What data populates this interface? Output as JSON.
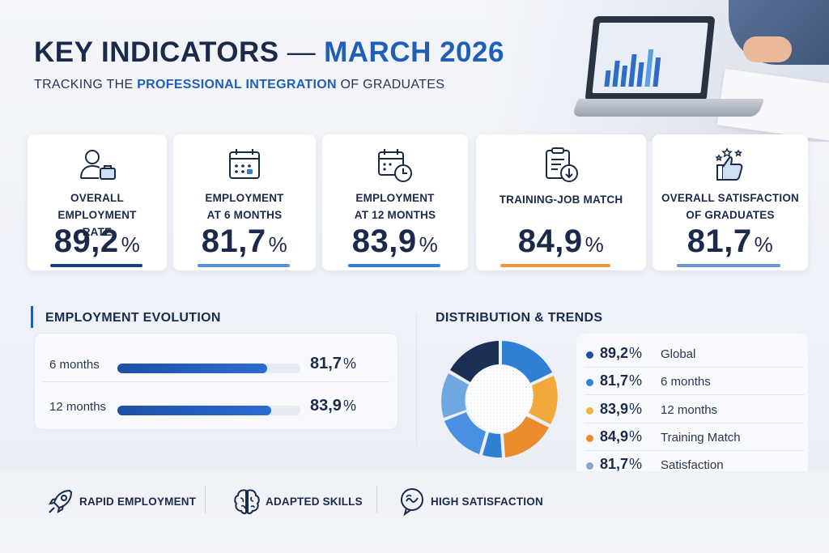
{
  "header": {
    "title_part1": "KEY INDICATORS",
    "separator": "—",
    "title_part2": "MARCH 2026",
    "subtitle_pre": "TRACKING THE ",
    "subtitle_highlight": "PROFESSIONAL INTEGRATION",
    "subtitle_post": " OF GRADUATES"
  },
  "kpis": [
    {
      "label_line1": "OVERALL EMPLOYMENT",
      "label_line2": "RATE",
      "value": "89,2",
      "unit": "%",
      "icon": "user-briefcase-icon",
      "color": "#1b3f7a"
    },
    {
      "label_line1": "EMPLOYMENT",
      "label_line2": "AT 6 MONTHS",
      "value": "81,7",
      "unit": "%",
      "icon": "calendar-icon",
      "color": "#5b8fd6"
    },
    {
      "label_line1": "EMPLOYMENT",
      "label_line2": "AT 12 MONTHS",
      "value": "83,9",
      "unit": "%",
      "icon": "calendar-clock-icon",
      "color": "#2f7fd4"
    },
    {
      "label_line1": "TRAINING-JOB MATCH",
      "label_line2": "",
      "value": "84,9",
      "unit": "%",
      "icon": "clipboard-download-icon",
      "color": "#e9983a"
    },
    {
      "label_line1": "OVERALL SATISFACTION",
      "label_line2": "OF GRADUATES",
      "value": "81,7",
      "unit": "%",
      "icon": "thumbs-up-stars-icon",
      "color": "#6f97cf"
    }
  ],
  "evolution": {
    "heading": "EMPLOYMENT EVOLUTION",
    "rows": [
      {
        "label": "6 months",
        "value": "81,7",
        "unit": "%",
        "level": 0.817
      },
      {
        "label": "12 months",
        "value": "83,9",
        "unit": "%",
        "level": 0.839
      }
    ]
  },
  "distribution": {
    "heading": "DISTRIBUTION & TRENDS",
    "legend": [
      {
        "value": "89,2",
        "unit": "%",
        "name": "Global",
        "color": "#1f4f9e"
      },
      {
        "value": "81,7",
        "unit": "%",
        "name": "6 months",
        "color": "#2c86d0"
      },
      {
        "value": "83,9",
        "unit": "%",
        "name": "12 months",
        "color": "#f0b544"
      },
      {
        "value": "84,9",
        "unit": "%",
        "name": "Training Match",
        "color": "#ec8a2e"
      },
      {
        "value": "81,7",
        "unit": "%",
        "name": "Satisfaction",
        "color": "#8aa6cc"
      }
    ]
  },
  "features": [
    {
      "label": "RAPID EMPLOYMENT",
      "icon": "rocket-icon"
    },
    {
      "label": "ADAPTED SKILLS",
      "icon": "brain-icon"
    },
    {
      "label": "HIGH SATISFACTION",
      "icon": "chat-bubble-icon"
    }
  ]
}
